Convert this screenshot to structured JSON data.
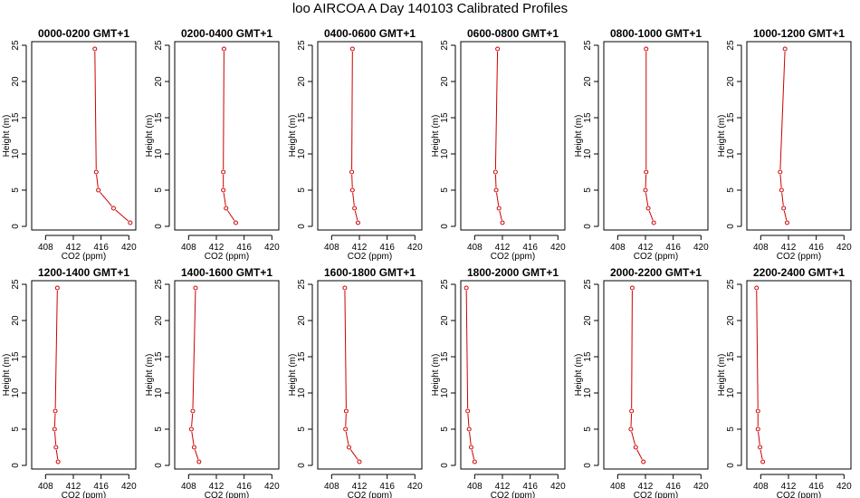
{
  "figure": {
    "title": "loo AIRCOA A  Day 140103  Calibrated Profiles",
    "line_color": "#cc0000",
    "frame_color": "#000000"
  },
  "chart_data": [
    {
      "type": "line",
      "title": "0000-0200 GMT+1",
      "xlabel": "CO2 (ppm)",
      "ylabel": "Height (m)",
      "xlim": [
        406,
        421
      ],
      "ylim": [
        -0.5,
        25.5
      ],
      "xticks": [
        408,
        412,
        416,
        420
      ],
      "yticks": [
        0,
        5,
        10,
        15,
        20,
        25
      ],
      "series": [
        {
          "x": [
            420.2,
            417.8,
            415.6,
            415.3,
            415.1
          ],
          "y": [
            0.5,
            2.5,
            5,
            7.5,
            24.5
          ]
        }
      ]
    },
    {
      "type": "line",
      "title": "0200-0400 GMT+1",
      "xlabel": "CO2 (ppm)",
      "ylabel": "Height (m)",
      "xlim": [
        406,
        421
      ],
      "ylim": [
        -0.5,
        25.5
      ],
      "xticks": [
        408,
        412,
        416,
        420
      ],
      "yticks": [
        0,
        5,
        10,
        15,
        20,
        25
      ],
      "series": [
        {
          "x": [
            414.8,
            413.4,
            413.0,
            413.0,
            413.1
          ],
          "y": [
            0.5,
            2.5,
            5,
            7.5,
            24.5
          ]
        }
      ]
    },
    {
      "type": "line",
      "title": "0400-0600 GMT+1",
      "xlabel": "CO2 (ppm)",
      "ylabel": "Height (m)",
      "xlim": [
        406,
        421
      ],
      "ylim": [
        -0.5,
        25.5
      ],
      "xticks": [
        408,
        412,
        416,
        420
      ],
      "yticks": [
        0,
        5,
        10,
        15,
        20,
        25
      ],
      "series": [
        {
          "x": [
            411.8,
            411.3,
            411.0,
            410.9,
            411.0
          ],
          "y": [
            0.5,
            2.5,
            5,
            7.5,
            24.5
          ]
        }
      ]
    },
    {
      "type": "line",
      "title": "0600-0800 GMT+1",
      "xlabel": "CO2 (ppm)",
      "ylabel": "Height (m)",
      "xlim": [
        406,
        421
      ],
      "ylim": [
        -0.5,
        25.5
      ],
      "xticks": [
        408,
        412,
        416,
        420
      ],
      "yticks": [
        0,
        5,
        10,
        15,
        20,
        25
      ],
      "series": [
        {
          "x": [
            412.0,
            411.5,
            411.1,
            411.0,
            411.3
          ],
          "y": [
            0.5,
            2.5,
            5,
            7.5,
            24.5
          ]
        }
      ]
    },
    {
      "type": "line",
      "title": "0800-1000 GMT+1",
      "xlabel": "CO2 (ppm)",
      "ylabel": "Height (m)",
      "xlim": [
        406,
        421
      ],
      "ylim": [
        -0.5,
        25.5
      ],
      "xticks": [
        408,
        412,
        416,
        420
      ],
      "yticks": [
        0,
        5,
        10,
        15,
        20,
        25
      ],
      "series": [
        {
          "x": [
            413.2,
            412.4,
            412.0,
            412.1,
            412.1
          ],
          "y": [
            0.5,
            2.5,
            5,
            7.5,
            24.5
          ]
        }
      ]
    },
    {
      "type": "line",
      "title": "1000-1200 GMT+1",
      "xlabel": "CO2 (ppm)",
      "ylabel": "Height (m)",
      "xlim": [
        406,
        421
      ],
      "ylim": [
        -0.5,
        25.5
      ],
      "xticks": [
        408,
        412,
        416,
        420
      ],
      "yticks": [
        0,
        5,
        10,
        15,
        20,
        25
      ],
      "series": [
        {
          "x": [
            411.8,
            411.3,
            411.0,
            410.8,
            411.5
          ],
          "y": [
            0.5,
            2.5,
            5,
            7.5,
            24.5
          ]
        }
      ]
    },
    {
      "type": "line",
      "title": "1200-1400 GMT+1",
      "xlabel": "CO2 (ppm)",
      "ylabel": "Height (m)",
      "xlim": [
        406,
        421
      ],
      "ylim": [
        -0.5,
        25.5
      ],
      "xticks": [
        408,
        412,
        416,
        420
      ],
      "yticks": [
        0,
        5,
        10,
        15,
        20,
        25
      ],
      "series": [
        {
          "x": [
            409.8,
            409.5,
            409.3,
            409.4,
            409.7
          ],
          "y": [
            0.5,
            2.5,
            5,
            7.5,
            24.5
          ]
        }
      ]
    },
    {
      "type": "line",
      "title": "1400-1600 GMT+1",
      "xlabel": "CO2 (ppm)",
      "ylabel": "Height (m)",
      "xlim": [
        406,
        421
      ],
      "ylim": [
        -0.5,
        25.5
      ],
      "xticks": [
        408,
        412,
        416,
        420
      ],
      "yticks": [
        0,
        5,
        10,
        15,
        20,
        25
      ],
      "series": [
        {
          "x": [
            409.5,
            408.8,
            408.4,
            408.6,
            409.0
          ],
          "y": [
            0.5,
            2.5,
            5,
            7.5,
            24.5
          ]
        }
      ]
    },
    {
      "type": "line",
      "title": "1600-1800 GMT+1",
      "xlabel": "CO2 (ppm)",
      "ylabel": "Height (m)",
      "xlim": [
        406,
        421
      ],
      "ylim": [
        -0.5,
        25.5
      ],
      "xticks": [
        408,
        412,
        416,
        420
      ],
      "yticks": [
        0,
        5,
        10,
        15,
        20,
        25
      ],
      "series": [
        {
          "x": [
            412.0,
            410.5,
            410.0,
            410.1,
            409.9
          ],
          "y": [
            0.5,
            2.5,
            5,
            7.5,
            24.5
          ]
        }
      ]
    },
    {
      "type": "line",
      "title": "1800-2000 GMT+1",
      "xlabel": "CO2 (ppm)",
      "ylabel": "Height (m)",
      "xlim": [
        406,
        421
      ],
      "ylim": [
        -0.5,
        25.5
      ],
      "xticks": [
        408,
        412,
        416,
        420
      ],
      "yticks": [
        0,
        5,
        10,
        15,
        20,
        25
      ],
      "series": [
        {
          "x": [
            408.0,
            407.5,
            407.2,
            407.0,
            406.8
          ],
          "y": [
            0.5,
            2.5,
            5,
            7.5,
            24.5
          ]
        }
      ]
    },
    {
      "type": "line",
      "title": "2000-2200 GMT+1",
      "xlabel": "CO2 (ppm)",
      "ylabel": "Height (m)",
      "xlim": [
        406,
        421
      ],
      "ylim": [
        -0.5,
        25.5
      ],
      "xticks": [
        408,
        412,
        416,
        420
      ],
      "yticks": [
        0,
        5,
        10,
        15,
        20,
        25
      ],
      "series": [
        {
          "x": [
            411.7,
            410.6,
            409.9,
            410.0,
            410.1
          ],
          "y": [
            0.5,
            2.5,
            5,
            7.5,
            24.5
          ]
        }
      ]
    },
    {
      "type": "line",
      "title": "2200-2400 GMT+1",
      "xlabel": "CO2 (ppm)",
      "ylabel": "Height (m)",
      "xlim": [
        406,
        421
      ],
      "ylim": [
        -0.5,
        25.5
      ],
      "xticks": [
        408,
        412,
        416,
        420
      ],
      "yticks": [
        0,
        5,
        10,
        15,
        20,
        25
      ],
      "series": [
        {
          "x": [
            408.3,
            407.9,
            407.6,
            407.6,
            407.4
          ],
          "y": [
            0.5,
            2.5,
            5,
            7.5,
            24.5
          ]
        }
      ]
    }
  ]
}
